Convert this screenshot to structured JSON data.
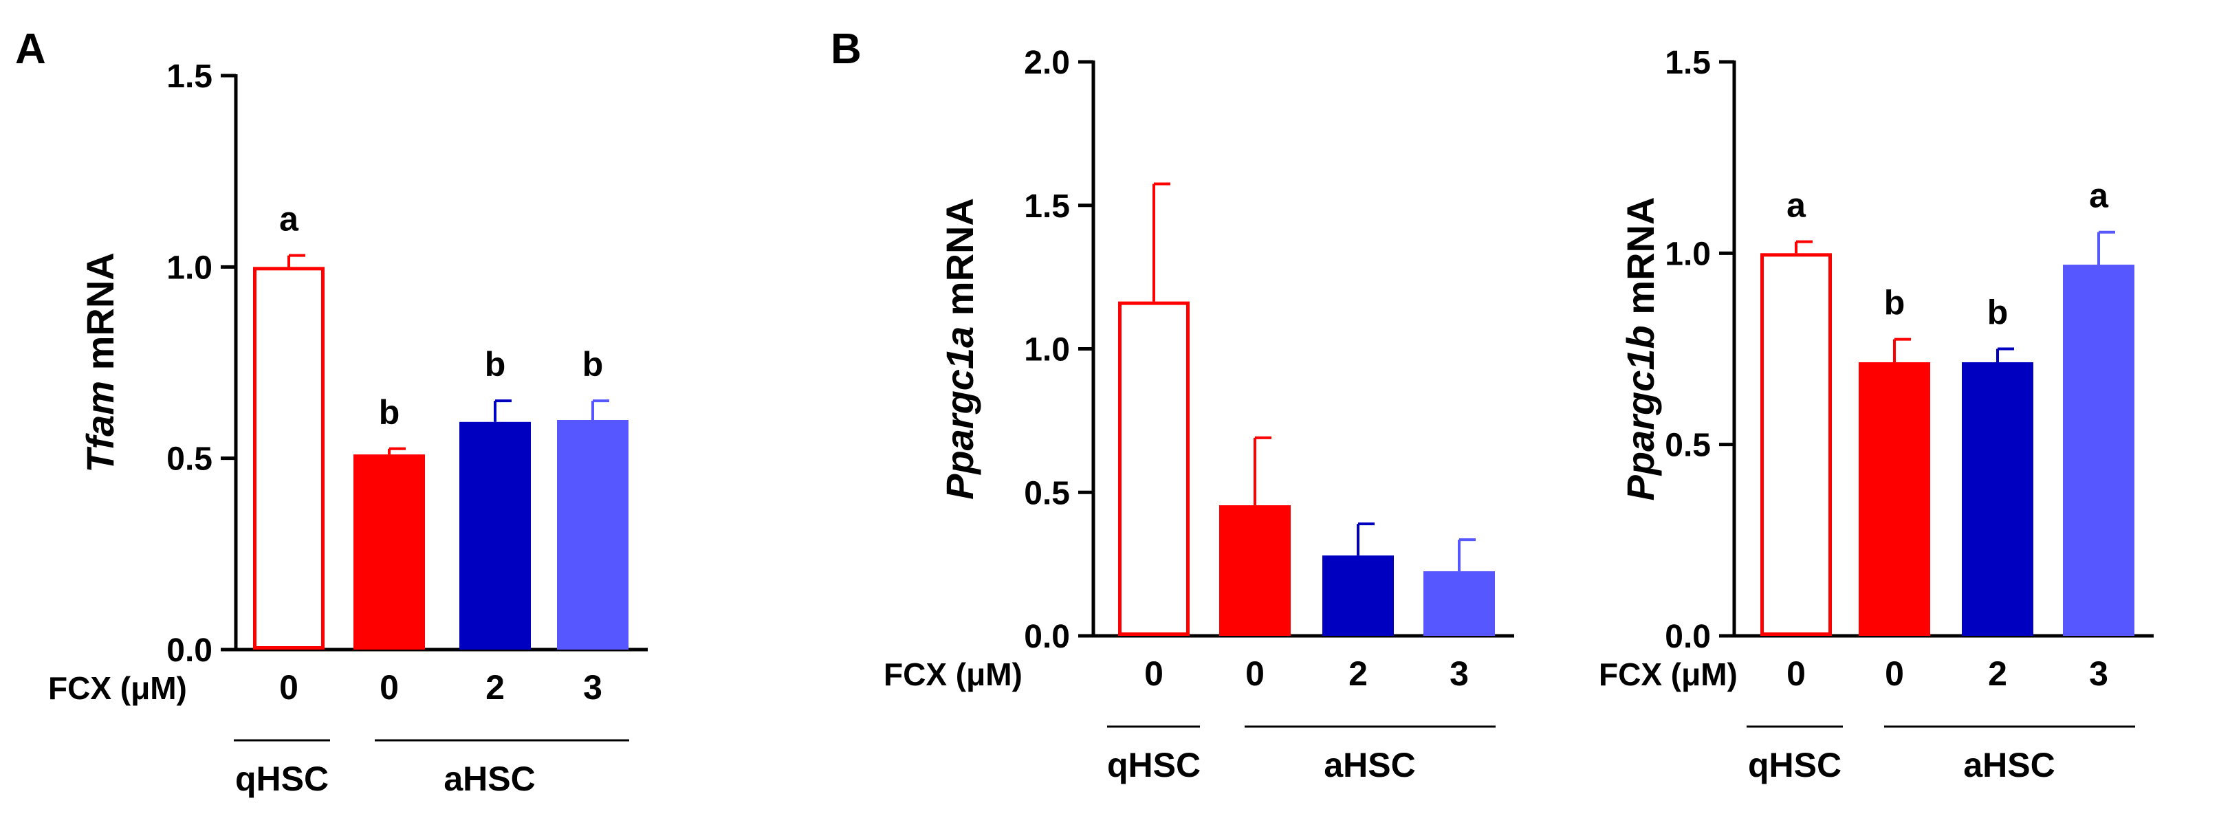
{
  "panel_labels": [
    "A",
    "B"
  ],
  "chart_data": [
    {
      "type": "bar",
      "ylabel_italic": "Tfam",
      "ylabel_rest": " mRNA",
      "ylim": [
        0,
        1.5
      ],
      "yticks": [
        "0.0",
        "0.5",
        "1.0",
        "1.5"
      ],
      "x_title": "FCX (μM)",
      "categories": [
        "0",
        "0",
        "2",
        "3"
      ],
      "groups": [
        {
          "label": "qHSC",
          "bars": [
            0
          ]
        },
        {
          "label": "aHSC",
          "bars": [
            1,
            2,
            3
          ]
        }
      ],
      "series": [
        {
          "values": [
            1.0,
            0.51,
            0.595,
            0.6
          ],
          "errors": [
            0.03,
            0.015,
            0.055,
            0.05
          ]
        }
      ],
      "annotations": [
        "a",
        "b",
        "b",
        "b"
      ],
      "colors": [
        "#ff0000",
        "#ff0000",
        "#0000c0",
        "#5757ff"
      ],
      "filled": [
        false,
        true,
        true,
        true
      ]
    },
    {
      "type": "bar",
      "ylabel_italic": "Ppargc1a",
      "ylabel_rest": " mRNA",
      "ylim": [
        0,
        2.0
      ],
      "yticks": [
        "0.0",
        "0.5",
        "1.0",
        "1.5",
        "2.0"
      ],
      "x_title": "FCX (μM)",
      "categories": [
        "0",
        "0",
        "2",
        "3"
      ],
      "groups": [
        {
          "label": "qHSC",
          "bars": [
            0
          ]
        },
        {
          "label": "aHSC",
          "bars": [
            1,
            2,
            3
          ]
        }
      ],
      "series": [
        {
          "values": [
            1.165,
            0.455,
            0.28,
            0.225
          ],
          "errors": [
            0.41,
            0.235,
            0.11,
            0.11
          ]
        }
      ],
      "annotations": [
        "",
        "",
        "",
        ""
      ],
      "colors": [
        "#ff0000",
        "#ff0000",
        "#0000c0",
        "#5757ff"
      ],
      "filled": [
        false,
        true,
        true,
        true
      ]
    },
    {
      "type": "bar",
      "ylabel_italic": "Ppargc1b",
      "ylabel_rest": " mRNA",
      "ylim": [
        0,
        1.5
      ],
      "yticks": [
        "0.0",
        "0.5",
        "1.0",
        "1.5"
      ],
      "x_title": "FCX (μM)",
      "categories": [
        "0",
        "0",
        "2",
        "3"
      ],
      "groups": [
        {
          "label": "qHSC",
          "bars": [
            0
          ]
        },
        {
          "label": "aHSC",
          "bars": [
            1,
            2,
            3
          ]
        }
      ],
      "series": [
        {
          "values": [
            1.0,
            0.715,
            0.715,
            0.97
          ],
          "errors": [
            0.03,
            0.06,
            0.035,
            0.085
          ]
        }
      ],
      "annotations": [
        "a",
        "b",
        "b",
        "a"
      ],
      "colors": [
        "#ff0000",
        "#ff0000",
        "#0000c0",
        "#5757ff"
      ],
      "filled": [
        false,
        true,
        true,
        true
      ]
    }
  ]
}
